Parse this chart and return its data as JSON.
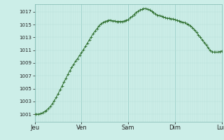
{
  "background_color": "#cceee8",
  "plot_bg_color": "#cceee8",
  "line_color": "#2d6e2d",
  "marker_color": "#2d6e2d",
  "grid_color_minor": "#b8ddd8",
  "grid_color_major": "#90c8c0",
  "yticks": [
    1001,
    1003,
    1005,
    1007,
    1009,
    1011,
    1013,
    1015,
    1017
  ],
  "ylim": [
    999.8,
    1018.2
  ],
  "xlim": [
    0,
    96
  ],
  "xtick_labels": [
    "Jeu",
    "Ven",
    "Sam",
    "Dim",
    "Lun"
  ],
  "xtick_positions": [
    0,
    24,
    48,
    72,
    96
  ],
  "day_line_positions": [
    0,
    24,
    48,
    72,
    96
  ],
  "x_data": [
    0,
    1,
    2,
    3,
    4,
    5,
    6,
    7,
    8,
    9,
    10,
    11,
    12,
    13,
    14,
    15,
    16,
    17,
    18,
    19,
    20,
    21,
    22,
    23,
    24,
    25,
    26,
    27,
    28,
    29,
    30,
    31,
    32,
    33,
    34,
    35,
    36,
    37,
    38,
    39,
    40,
    41,
    42,
    43,
    44,
    45,
    46,
    47,
    48,
    49,
    50,
    51,
    52,
    53,
    54,
    55,
    56,
    57,
    58,
    59,
    60,
    61,
    62,
    63,
    64,
    65,
    66,
    67,
    68,
    69,
    70,
    71,
    72,
    73,
    74,
    75,
    76,
    77,
    78,
    79,
    80,
    81,
    82,
    83,
    84,
    85,
    86,
    87,
    88,
    89,
    90,
    91,
    92,
    93,
    94,
    95,
    96
  ],
  "y_data": [
    1001.0,
    1001.0,
    1001.0,
    1001.1,
    1001.2,
    1001.4,
    1001.6,
    1001.9,
    1002.2,
    1002.6,
    1003.1,
    1003.6,
    1004.2,
    1004.8,
    1005.4,
    1006.0,
    1006.6,
    1007.2,
    1007.8,
    1008.3,
    1008.8,
    1009.3,
    1009.7,
    1010.2,
    1010.6,
    1011.1,
    1011.6,
    1012.1,
    1012.6,
    1013.1,
    1013.6,
    1014.0,
    1014.4,
    1014.8,
    1015.1,
    1015.3,
    1015.5,
    1015.6,
    1015.7,
    1015.7,
    1015.6,
    1015.6,
    1015.5,
    1015.5,
    1015.5,
    1015.5,
    1015.6,
    1015.7,
    1015.8,
    1016.1,
    1016.3,
    1016.6,
    1016.9,
    1017.1,
    1017.3,
    1017.4,
    1017.5,
    1017.5,
    1017.4,
    1017.3,
    1017.1,
    1016.9,
    1016.7,
    1016.5,
    1016.4,
    1016.3,
    1016.2,
    1016.1,
    1016.0,
    1016.0,
    1015.9,
    1015.9,
    1015.8,
    1015.7,
    1015.6,
    1015.5,
    1015.4,
    1015.3,
    1015.1,
    1015.0,
    1014.8,
    1014.5,
    1014.2,
    1013.8,
    1013.4,
    1013.0,
    1012.6,
    1012.2,
    1011.8,
    1011.4,
    1011.0,
    1010.8,
    1010.7,
    1010.7,
    1010.7,
    1010.8,
    1010.9
  ]
}
